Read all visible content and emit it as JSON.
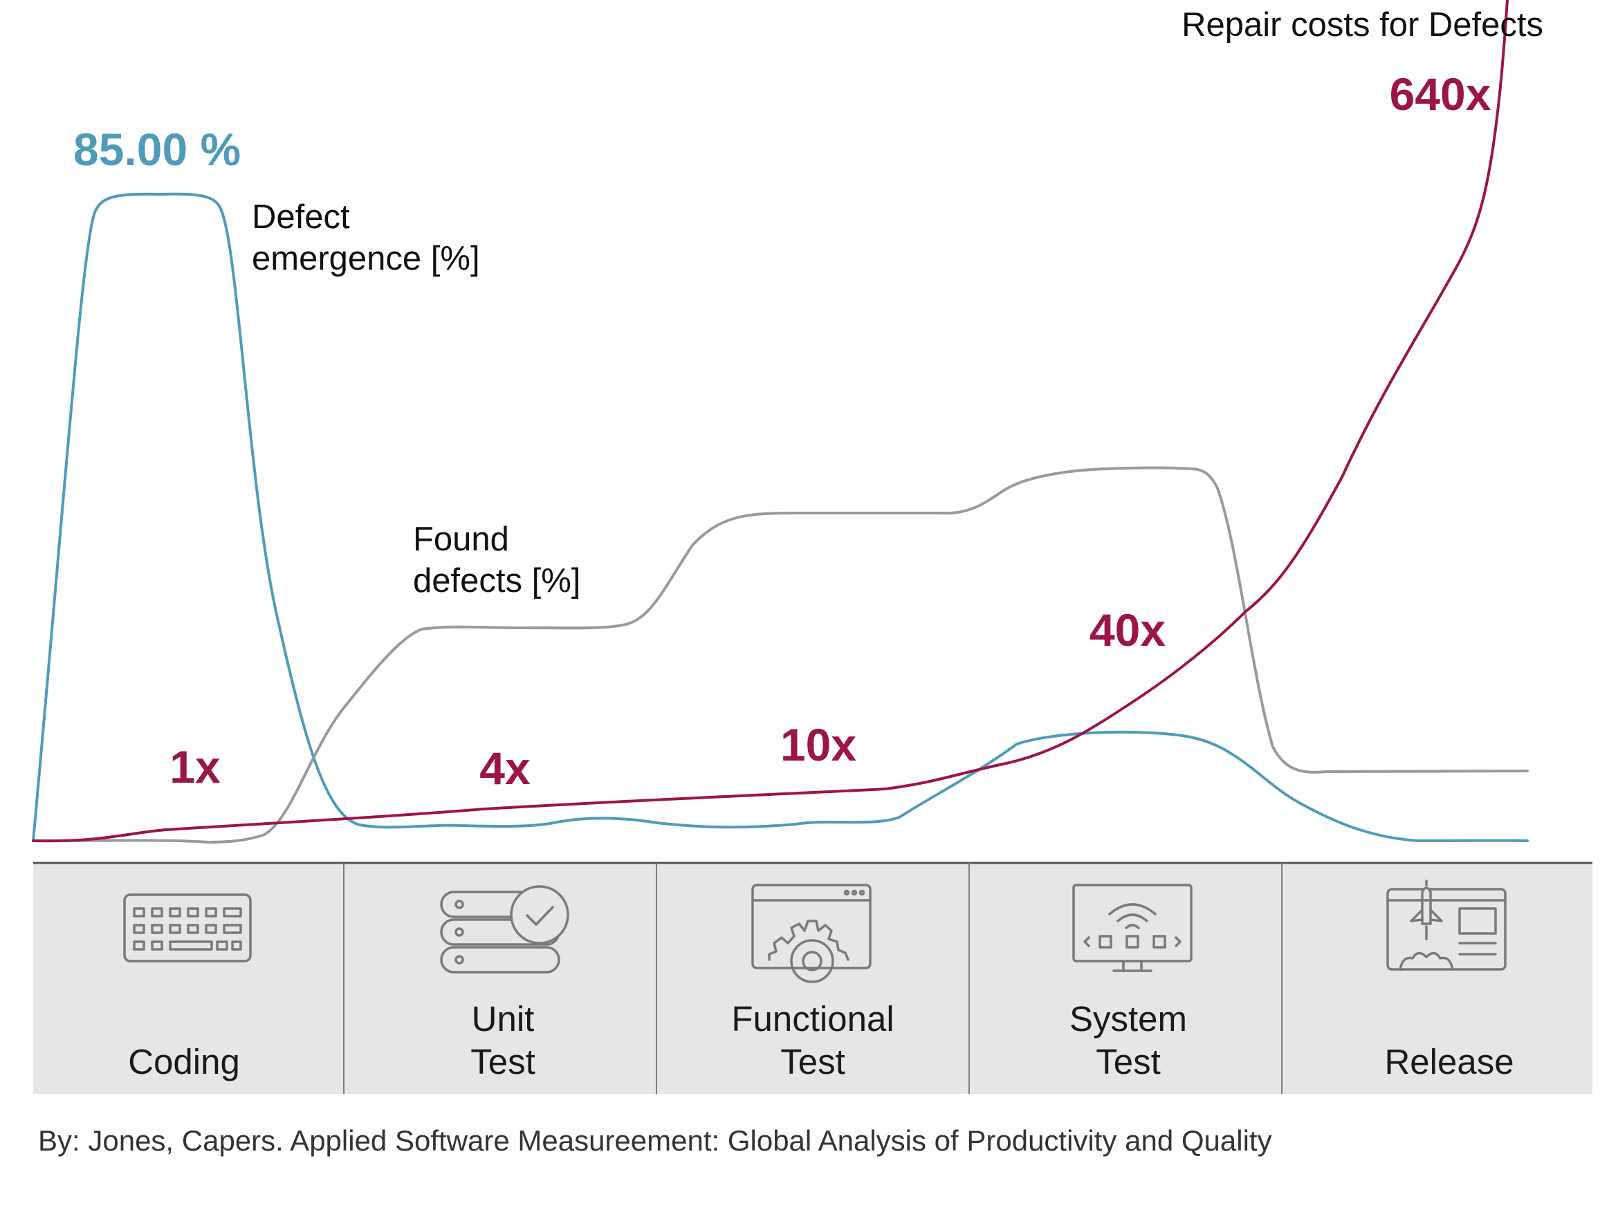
{
  "chart_data": {
    "type": "line",
    "categories": [
      "Coding",
      "Unit Test",
      "Functional Test",
      "System Test",
      "Release"
    ],
    "category_lines": [
      [
        "Coding"
      ],
      [
        "Unit",
        "Test"
      ],
      [
        "Functional",
        "Test"
      ],
      [
        "System",
        "Test"
      ],
      [
        "Release"
      ]
    ],
    "series": [
      {
        "key": "defect_emergence",
        "name_lines": [
          "Defect",
          "emergence [%]"
        ],
        "color": "#4f9cba",
        "values": [
          85,
          2,
          3,
          14,
          0
        ],
        "peak_label": "85.00 %"
      },
      {
        "key": "found_defects",
        "name_lines": [
          "Found",
          "defects [%]"
        ],
        "color": "#9a9a9a",
        "values": [
          0,
          27,
          42,
          48,
          9
        ]
      },
      {
        "key": "repair_costs",
        "name": "Repair costs for Defects",
        "color": "#9b1548",
        "values": [
          1,
          4,
          10,
          40,
          640
        ],
        "value_labels": [
          "1x",
          "4x",
          "10x",
          "40x",
          "640x"
        ]
      }
    ],
    "grid": false,
    "legend": "inline"
  },
  "source_text": "By: Jones, Capers. Applied Software Measureement: Global Analysis of Productivity and Quality",
  "icons": [
    "keyboard-icon",
    "server-check-icon",
    "gear-window-icon",
    "monitor-wifi-icon",
    "rocket-launch-icon"
  ],
  "colors": {
    "phase_band": "#e6e6e6",
    "divider": "#7d7d7d",
    "axis": "#555555"
  }
}
